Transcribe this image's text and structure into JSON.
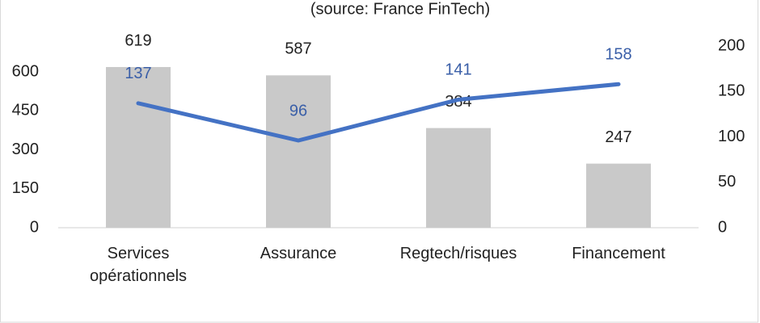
{
  "chart_data": {
    "type": "bar_line",
    "subtitle": "(source: France FinTech)",
    "categories": [
      "Services opérationnels",
      "Assurance",
      "Regtech/risques",
      "Financement"
    ],
    "series": [
      {
        "type": "bar",
        "color": "#c9c9c9",
        "values": [
          619,
          587,
          384,
          247
        ],
        "label_color": "#222222"
      },
      {
        "type": "line",
        "color": "#4472c4",
        "axis": "y2",
        "values": [
          137,
          96,
          141,
          158
        ],
        "label_color": "#3a5fa8"
      }
    ],
    "ylim": [
      0,
      700
    ],
    "yticks": [
      0,
      150,
      300,
      450,
      600
    ],
    "y2lim": [
      0,
      200
    ],
    "y2ticks": [
      0,
      50,
      100,
      150,
      200
    ],
    "grid": false
  }
}
